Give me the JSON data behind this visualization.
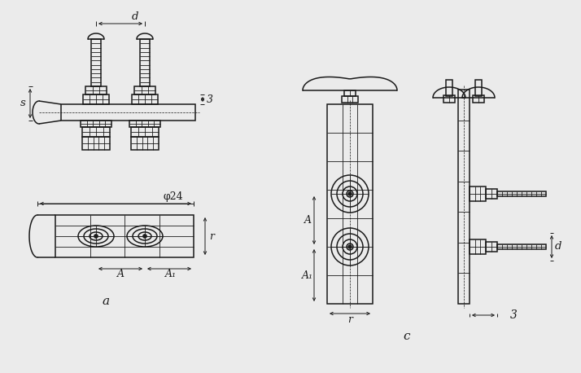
{
  "bg_color": "#ebebeb",
  "line_color": "#1a1a1a",
  "lw": 1.1,
  "thin_lw": 0.6,
  "label_a": "a",
  "label_c": "c",
  "label_d_top": "d",
  "label_s": "s",
  "label_3a": "3",
  "label_phi24": "φ24",
  "label_A_bot": "A",
  "label_A1_bot": "A₁",
  "label_r_bot": "r",
  "label_A_c": "A",
  "label_A1_c": "A₁",
  "label_r_c": "r",
  "label_d_c": "d",
  "label_3c": "3"
}
